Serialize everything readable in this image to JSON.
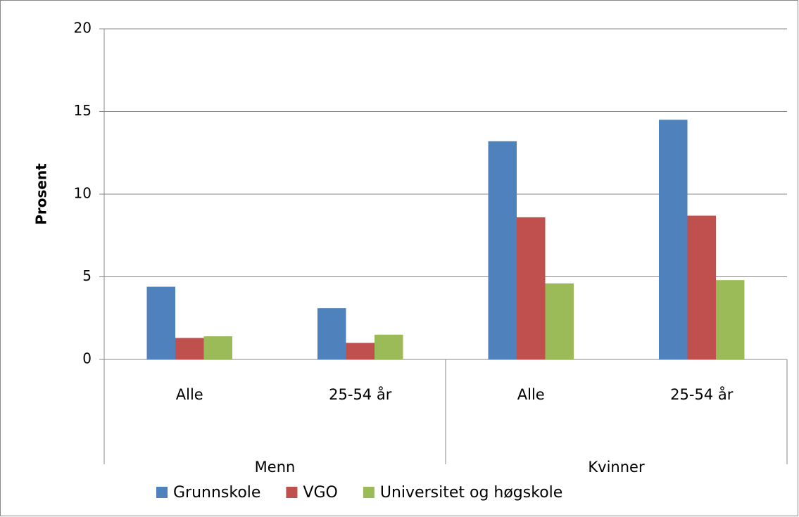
{
  "chart_data": {
    "type": "bar",
    "y_label": "Prosent",
    "categories": [
      "Alle",
      "25-54 år",
      "Alle",
      "25-54 år"
    ],
    "groups": [
      "Menn",
      "Kvinner"
    ],
    "series": [
      {
        "name": "Grunnskole",
        "color": "#4f81bd",
        "values": [
          4.4,
          3.1,
          13.2,
          14.5
        ]
      },
      {
        "name": "VGO",
        "color": "#c0504d",
        "values": [
          1.3,
          1.0,
          8.6,
          8.7
        ]
      },
      {
        "name": "Universitet og høgskole",
        "color": "#9bbb59",
        "values": [
          1.4,
          1.5,
          4.6,
          4.8
        ]
      }
    ],
    "ylim": [
      0,
      20
    ],
    "yticks": [
      0,
      5,
      10,
      15,
      20
    ],
    "grid": true,
    "legend": "bottom"
  }
}
